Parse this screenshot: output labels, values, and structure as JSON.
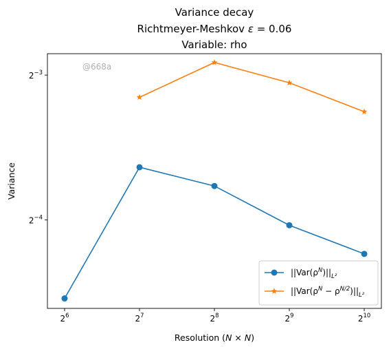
{
  "chart_data": {
    "type": "line",
    "title": [
      "Variance decay",
      "Richtmeyer-Meshkov ε = 0.06",
      "Variable: rho"
    ],
    "xlabel": "Resolution (N × N)",
    "ylabel": "Variance",
    "xscale": "log2",
    "yscale": "log2",
    "x": [
      64,
      128,
      256,
      512,
      1024
    ],
    "x_ticks": [
      {
        "base": "2",
        "exp": "6",
        "value": 64
      },
      {
        "base": "2",
        "exp": "7",
        "value": 128
      },
      {
        "base": "2",
        "exp": "8",
        "value": 256
      },
      {
        "base": "2",
        "exp": "9",
        "value": 512
      },
      {
        "base": "2",
        "exp": "10",
        "value": 1024
      }
    ],
    "y_ticks": [
      {
        "base": "2",
        "exp": "−3",
        "value": 0.125
      },
      {
        "base": "2",
        "exp": "−4",
        "value": 0.0625
      }
    ],
    "xlim": [
      54.6,
      1200
    ],
    "ylim": [
      0.0409,
      0.1385
    ],
    "series": [
      {
        "name": "||Var(ρ^N)||_{L²}",
        "color": "#1f77b4",
        "marker": "circle",
        "x": [
          64,
          128,
          256,
          512,
          1024
        ],
        "y": [
          0.0429,
          0.0804,
          0.0735,
          0.0609,
          0.0531
        ]
      },
      {
        "name": "||Var(ρ^N − ρ^{N/2})||_{L²}",
        "color": "#ff7f0e",
        "marker": "star",
        "x": [
          128,
          256,
          512,
          1024
        ],
        "y": [
          0.1124,
          0.1328,
          0.1205,
          0.1049
        ]
      }
    ],
    "legend_placement": "lower-right",
    "grid": false
  },
  "watermark": "@668a"
}
